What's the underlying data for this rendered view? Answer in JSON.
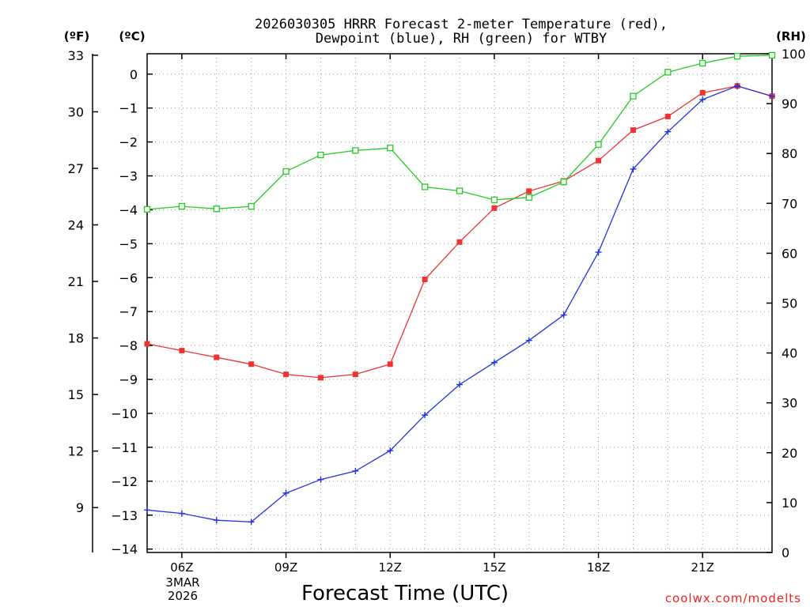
{
  "chart_data": {
    "type": "line",
    "title_line1": "2026030305 HRRR Forecast 2-meter Temperature (red),",
    "title_line2": "Dewpoint (blue), RH (green) for WTBY",
    "xlabel": "Forecast Time (UTC)",
    "y_left_outer_unit": "(ºF)",
    "y_left_inner_unit": "(ºC)",
    "y_right_unit": "(RH)",
    "watermark": "coolwx.com/modelts",
    "x_hours": [
      5,
      6,
      7,
      8,
      9,
      10,
      11,
      12,
      13,
      14,
      15,
      16,
      17,
      18,
      19,
      20,
      21,
      22,
      23
    ],
    "xlim": [
      5,
      23
    ],
    "x_ticks": [
      {
        "hour": 6,
        "label": "06Z"
      },
      {
        "hour": 9,
        "label": "09Z"
      },
      {
        "hour": 12,
        "label": "12Z"
      },
      {
        "hour": 15,
        "label": "15Z"
      },
      {
        "hour": 18,
        "label": "18Z"
      },
      {
        "hour": 21,
        "label": "21Z"
      }
    ],
    "date_label_line1": "3MAR",
    "date_label_line2": "2026",
    "ylim_celsius": [
      -14.1,
      0.6
    ],
    "ylim_rh": [
      0,
      100
    ],
    "celsius_ticks": [
      0,
      -1,
      -2,
      -3,
      -4,
      -5,
      -6,
      -7,
      -8,
      -9,
      -10,
      -11,
      -12,
      -13,
      -14
    ],
    "fahrenheit_ticks": [
      33,
      30,
      27,
      24,
      21,
      18,
      15,
      12,
      9
    ],
    "rh_ticks": [
      100,
      90,
      80,
      70,
      60,
      50,
      40,
      30,
      20,
      10,
      0
    ],
    "series": [
      {
        "name": "Temperature",
        "unit": "C",
        "axis": "celsius",
        "color": "#ee3333",
        "marker": "filled-square",
        "values": [
          -7.95,
          -8.15,
          -8.35,
          -8.55,
          -8.85,
          -8.95,
          -8.85,
          -8.55,
          -6.05,
          -4.95,
          -3.95,
          -3.45,
          -3.15,
          -2.55,
          -1.65,
          -1.25,
          -0.55,
          -0.35,
          -0.65
        ]
      },
      {
        "name": "Dewpoint",
        "unit": "C",
        "axis": "celsius",
        "color": "#2233dd",
        "marker": "plus",
        "values": [
          -12.85,
          -12.95,
          -13.15,
          -13.2,
          -12.35,
          -11.95,
          -11.7,
          -11.1,
          -10.05,
          -9.15,
          -8.5,
          -7.85,
          -7.1,
          -5.25,
          -2.8,
          -1.7,
          -0.75,
          -0.35,
          -0.65
        ]
      },
      {
        "name": "RH",
        "unit": "%",
        "axis": "rh",
        "color": "#22cc22",
        "marker": "open-square",
        "values": [
          68.8,
          69.4,
          68.9,
          69.4,
          76.4,
          79.7,
          80.6,
          81.1,
          73.3,
          72.5,
          70.7,
          71.2,
          74.3,
          81.8,
          91.5,
          96.3,
          98.1,
          99.5,
          99.7
        ]
      }
    ]
  }
}
